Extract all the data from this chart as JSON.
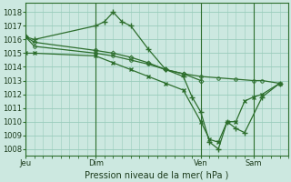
{
  "background_color": "#cce8e0",
  "grid_color": "#99ccbb",
  "line_color": "#2d6e2d",
  "title": "Pression niveau de la mer( hPa )",
  "ylabel_ticks": [
    1008,
    1009,
    1010,
    1011,
    1012,
    1013,
    1014,
    1015,
    1016,
    1017,
    1018
  ],
  "ylim": [
    1007.5,
    1018.7
  ],
  "day_labels": [
    "Jeu",
    "Dim",
    "Ven",
    "Sam"
  ],
  "day_positions": [
    0,
    8,
    20,
    26
  ],
  "xlim": [
    0,
    30
  ],
  "series": [
    {
      "x": [
        0,
        1,
        8,
        9,
        10,
        11,
        12,
        14,
        16,
        18,
        19,
        20,
        21,
        22,
        23,
        24,
        25,
        27,
        29
      ],
      "y": [
        1016.2,
        1016.0,
        1017.0,
        1017.3,
        1018.0,
        1017.3,
        1017.0,
        1015.3,
        1013.8,
        1013.3,
        1011.8,
        1010.7,
        1008.5,
        1008.0,
        1010.0,
        1009.5,
        1009.2,
        1011.8,
        1012.8
      ],
      "marker": "+"
    },
    {
      "x": [
        0,
        1,
        8,
        10,
        12,
        14,
        16,
        18,
        20
      ],
      "y": [
        1016.2,
        1015.8,
        1015.2,
        1015.0,
        1014.7,
        1014.3,
        1013.8,
        1013.5,
        1013.0
      ],
      "marker": "D"
    },
    {
      "x": [
        0,
        1,
        8,
        10,
        12,
        14,
        16,
        18,
        20,
        22,
        24,
        26,
        27,
        29
      ],
      "y": [
        1016.2,
        1015.5,
        1015.0,
        1014.8,
        1014.5,
        1014.2,
        1013.8,
        1013.5,
        1013.3,
        1013.2,
        1013.1,
        1013.0,
        1013.0,
        1012.8
      ],
      "marker": "o"
    },
    {
      "x": [
        0,
        1,
        8,
        10,
        12,
        14,
        16,
        18,
        20,
        21,
        22,
        23,
        24,
        25,
        26,
        27,
        29
      ],
      "y": [
        1015.0,
        1015.0,
        1014.8,
        1014.3,
        1013.8,
        1013.3,
        1012.8,
        1012.3,
        1010.0,
        1008.7,
        1008.5,
        1010.0,
        1010.0,
        1011.5,
        1011.8,
        1012.0,
        1012.8
      ],
      "marker": "x"
    }
  ]
}
